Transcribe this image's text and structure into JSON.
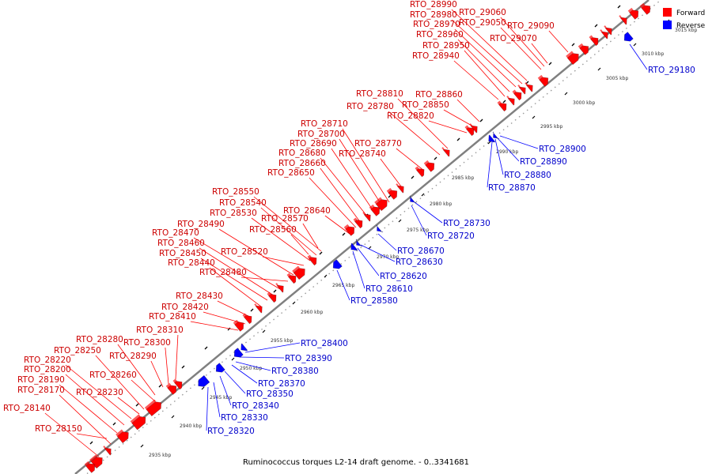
{
  "caption": "Ruminococcus torques L2-14 draft genome. - 0..3341681",
  "legend": [
    {
      "label": "Forward",
      "color": "#ff0000"
    },
    {
      "label": "Reverse",
      "color": "#0000ff"
    }
  ],
  "colors": {
    "forward": "#ff0000",
    "forward_label": "#cc0000",
    "reverse": "#0000ff",
    "reverse_label": "#0000cc",
    "backbone": "#808080"
  },
  "tick_labels": [
    "2935 kbp",
    "2940 kbp",
    "2945 kbp",
    "2950 kbp",
    "2955 kbp",
    "2960 kbp",
    "2965 kbp",
    "2970 kbp",
    "2975 kbp",
    "2980 kbp",
    "2985 kbp",
    "2990 kbp",
    "2995 kbp",
    "3000 kbp",
    "3005 kbp",
    "3010 kbp",
    "3015 kbp"
  ],
  "forward_genes": [
    "RTO_28140",
    "RTO_28150",
    "RTO_28170",
    "RTO_28190",
    "RTO_28200",
    "RTO_28220",
    "RTO_28230",
    "RTO_28250",
    "RTO_28260",
    "RTO_28280",
    "RTO_28290",
    "RTO_28300",
    "RTO_28310",
    "RTO_28410",
    "RTO_28420",
    "RTO_28430",
    "RTO_28440",
    "RTO_28450",
    "RTO_28460",
    "RTO_28470",
    "RTO_28480",
    "RTO_28490",
    "RTO_28520",
    "RTO_28530",
    "RTO_28540",
    "RTO_28550",
    "RTO_28560",
    "RTO_28570",
    "RTO_28640",
    "RTO_28650",
    "RTO_28660",
    "RTO_28680",
    "RTO_28690",
    "RTO_28700",
    "RTO_28710",
    "RTO_28740",
    "RTO_28770",
    "RTO_28780",
    "RTO_28810",
    "RTO_28820",
    "RTO_28850",
    "RTO_28860",
    "RTO_28940",
    "RTO_28950",
    "RTO_28960",
    "RTO_28970",
    "RTO_28980",
    "RTO_28990",
    "RTO_29050",
    "RTO_29060",
    "RTO_29070",
    "RTO_29090"
  ],
  "reverse_genes": [
    "RTO_28320",
    "RTO_28330",
    "RTO_28340",
    "RTO_28350",
    "RTO_28370",
    "RTO_28380",
    "RTO_28390",
    "RTO_28400",
    "RTO_28580",
    "RTO_28610",
    "RTO_28620",
    "RTO_28630",
    "RTO_28670",
    "RTO_28720",
    "RTO_28730",
    "RTO_28870",
    "RTO_28880",
    "RTO_28890",
    "RTO_28900",
    "RTO_29180"
  ]
}
